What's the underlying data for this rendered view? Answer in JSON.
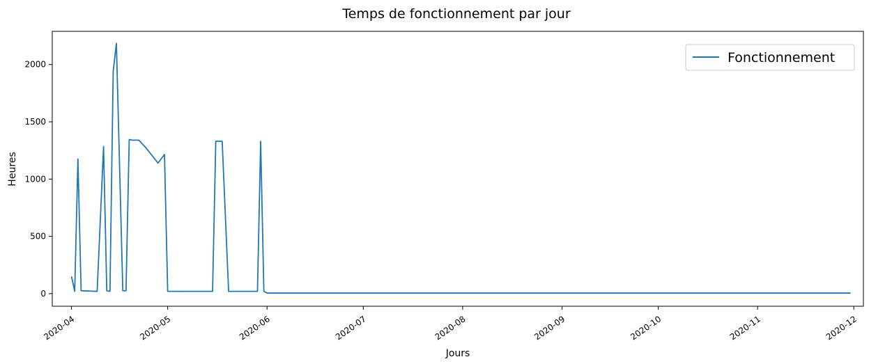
{
  "chart_data": {
    "type": "line",
    "title": "Temps de fonctionnement par jour",
    "xlabel": "Jours",
    "ylabel": "Heures",
    "x_axis_type": "date",
    "xlim": [
      "2020-03-26",
      "2020-12-04"
    ],
    "ylim": [
      -110,
      2290
    ],
    "y_ticks": [
      0,
      500,
      1000,
      1500,
      2000
    ],
    "x_ticks": [
      "2020-04",
      "2020-05",
      "2020-06",
      "2020-07",
      "2020-08",
      "2020-09",
      "2020-10",
      "2020-11",
      "2020-12"
    ],
    "x_tick_dates": [
      "2020-04-01",
      "2020-05-01",
      "2020-06-01",
      "2020-07-01",
      "2020-08-01",
      "2020-09-01",
      "2020-10-01",
      "2020-11-01",
      "2020-12-01"
    ],
    "grid": false,
    "legend_position": "top-right",
    "series": [
      {
        "name": "Fonctionnement",
        "color": "#1f77b4",
        "x": [
          "2020-04-01",
          "2020-04-02",
          "2020-04-03",
          "2020-04-04",
          "2020-04-09",
          "2020-04-11",
          "2020-04-12",
          "2020-04-13",
          "2020-04-14",
          "2020-04-15",
          "2020-04-17",
          "2020-04-18",
          "2020-04-19",
          "2020-04-20",
          "2020-04-22",
          "2020-04-24",
          "2020-04-28",
          "2020-04-30",
          "2020-05-01",
          "2020-05-15",
          "2020-05-16",
          "2020-05-18",
          "2020-05-20",
          "2020-05-29",
          "2020-05-30",
          "2020-05-31",
          "2020-06-01",
          "2020-11-30"
        ],
        "values": [
          150,
          20,
          1175,
          25,
          20,
          1285,
          25,
          20,
          1940,
          2185,
          25,
          25,
          1345,
          1340,
          1340,
          1280,
          1140,
          1215,
          20,
          20,
          1330,
          1330,
          20,
          20,
          1330,
          20,
          5,
          5
        ]
      }
    ]
  }
}
